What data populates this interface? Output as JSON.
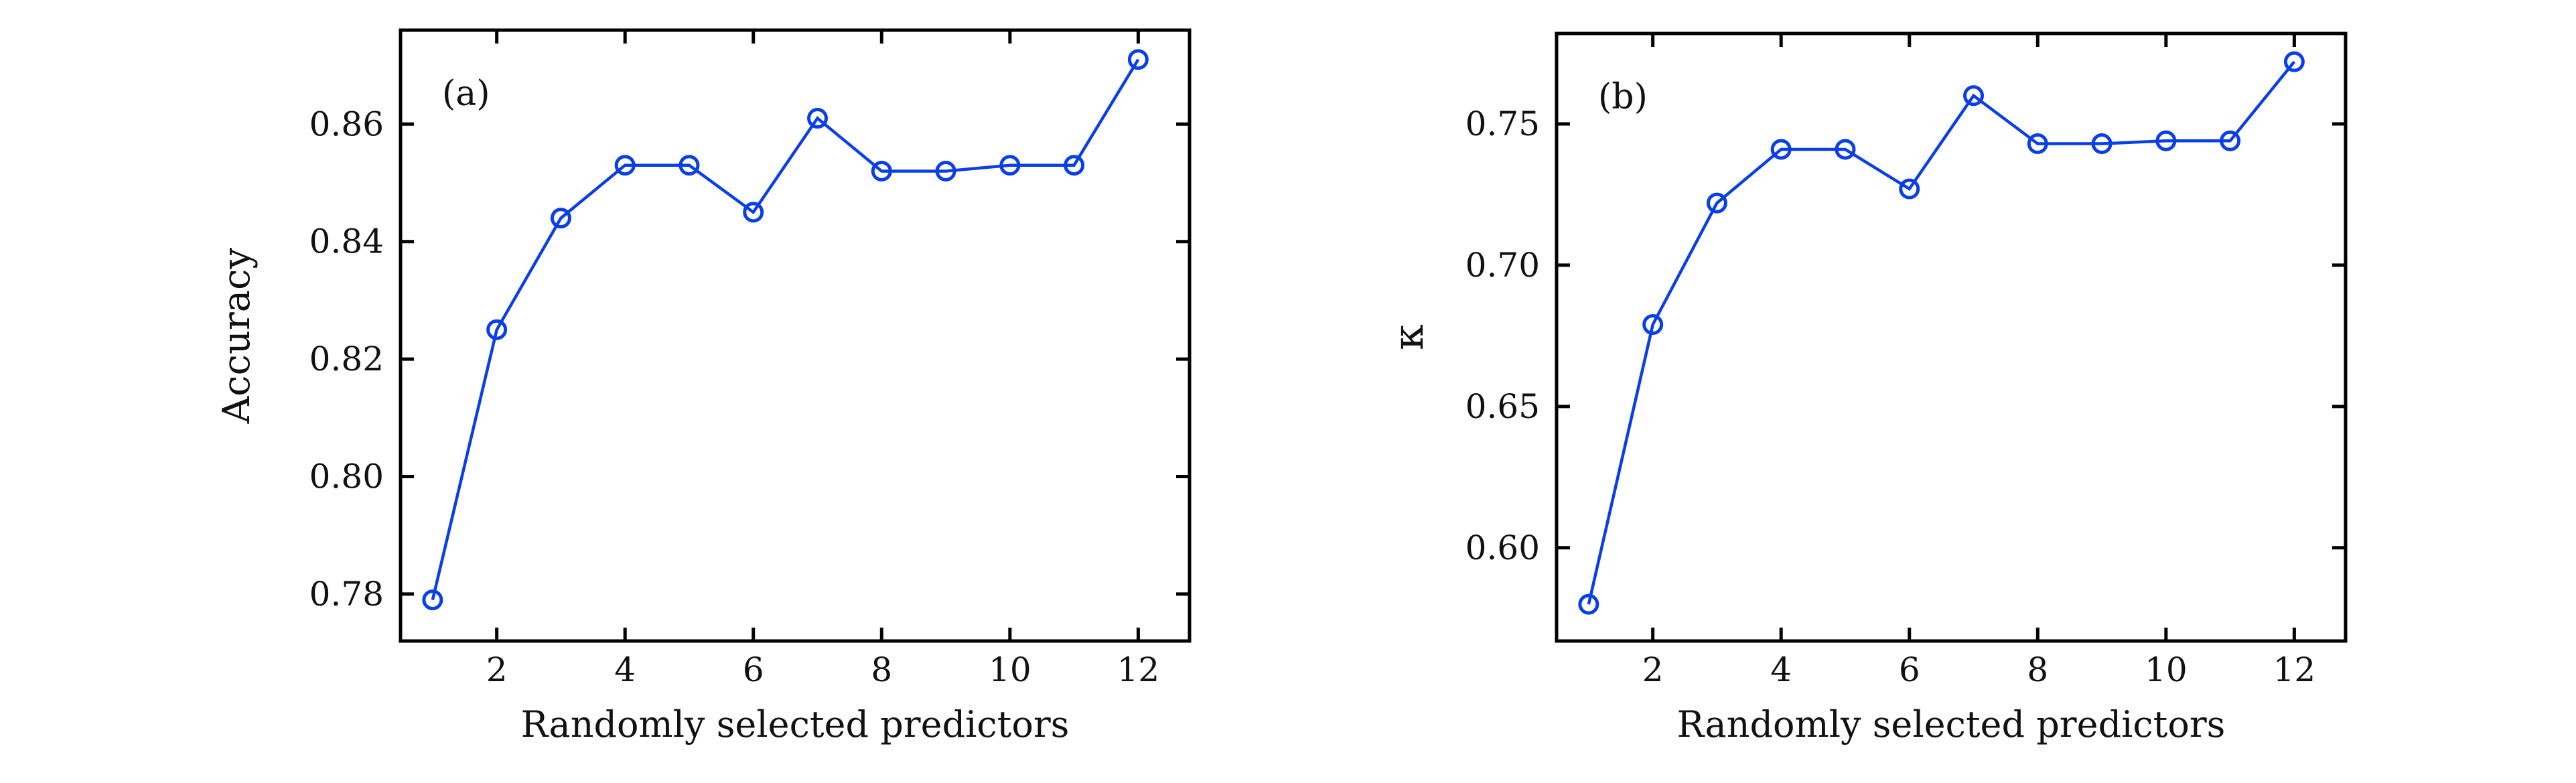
{
  "chart_data": [
    {
      "type": "line",
      "panel_label": "(a)",
      "xlabel": "Randomly selected predictors",
      "ylabel": "Accuracy",
      "xlim": [
        0.5,
        12.8
      ],
      "ylim": [
        0.772,
        0.876
      ],
      "x_ticks": [
        2,
        4,
        6,
        8,
        10,
        12
      ],
      "x_tick_labels": [
        "2",
        "4",
        "6",
        "8",
        "10",
        "12"
      ],
      "y_ticks": [
        0.78,
        0.8,
        0.82,
        0.84,
        0.86
      ],
      "y_tick_labels": [
        "0.78",
        "0.80",
        "0.82",
        "0.84",
        "0.86"
      ],
      "grid": false,
      "x": [
        1,
        2,
        3,
        4,
        5,
        6,
        7,
        8,
        9,
        10,
        11,
        12
      ],
      "series": [
        {
          "values": [
            0.779,
            0.825,
            0.844,
            0.853,
            0.853,
            0.845,
            0.861,
            0.852,
            0.852,
            0.853,
            0.853,
            0.871
          ],
          "color": "#0a3fe6",
          "marker": "open-circle"
        }
      ]
    },
    {
      "type": "line",
      "panel_label": "(b)",
      "xlabel": "Randomly selected predictors",
      "ylabel": "κ",
      "xlim": [
        0.5,
        12.8
      ],
      "ylim": [
        0.567,
        0.782
      ],
      "x_ticks": [
        2,
        4,
        6,
        8,
        10,
        12
      ],
      "x_tick_labels": [
        "2",
        "4",
        "6",
        "8",
        "10",
        "12"
      ],
      "y_ticks": [
        0.6,
        0.65,
        0.7,
        0.75
      ],
      "y_tick_labels": [
        "0.60",
        "0.65",
        "0.70",
        "0.75"
      ],
      "grid": false,
      "x": [
        1,
        2,
        3,
        4,
        5,
        6,
        7,
        8,
        9,
        10,
        11,
        12
      ],
      "series": [
        {
          "values": [
            0.58,
            0.679,
            0.722,
            0.741,
            0.741,
            0.727,
            0.76,
            0.743,
            0.743,
            0.744,
            0.744,
            0.772
          ],
          "color": "#0a3fe6",
          "marker": "open-circle"
        }
      ]
    }
  ]
}
